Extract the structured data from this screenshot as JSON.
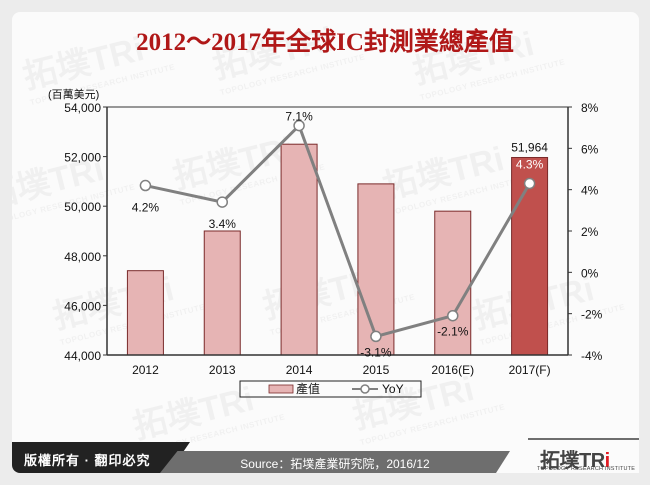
{
  "title": "2012～2017年全球IC封測業總產值",
  "unit_label": "(百萬美元)",
  "watermark": {
    "brand": "拓墣TRi",
    "subtitle": "TOPOLOGY RESEARCH INSTITUTE"
  },
  "footer": {
    "copyright": "版權所有 · 翻印必究",
    "source": "Source：拓墣產業研究院，2016/12",
    "logo_text": "拓墣TR",
    "logo_accent": "i",
    "logo_subtitle": "TOPOLOGY RESEARCH INSTITUTE"
  },
  "colors": {
    "title": "#b01818",
    "bar": "#e6b4b4",
    "bar_highlight": "#c0504d",
    "bar_border": "#7a2a2a",
    "line": "#808080"
  },
  "chart_data": {
    "type": "bar",
    "title": "2012～2017年全球IC封測業總產值",
    "categories": [
      "2012",
      "2013",
      "2014",
      "2015",
      "2016(E)",
      "2017(F)"
    ],
    "series": [
      {
        "name": "產值",
        "type": "bar",
        "axis": "left",
        "values": [
          47400,
          49000,
          52500,
          50900,
          49800,
          51964
        ]
      },
      {
        "name": "YoY",
        "type": "line",
        "axis": "right",
        "values": [
          4.2,
          3.4,
          7.1,
          -3.1,
          -2.1,
          4.3
        ],
        "labels": [
          "4.2%",
          "3.4%",
          "7.1%",
          "-3.1%",
          "-2.1%",
          "4.3%"
        ]
      }
    ],
    "bar_data_labels": {
      "5": "51,964"
    },
    "ylabel": "(百萬美元)",
    "ylim": [
      44000,
      54000
    ],
    "yticks": [
      "44,000",
      "46,000",
      "48,000",
      "50,000",
      "52,000",
      "54,000"
    ],
    "y2lim": [
      -4,
      8
    ],
    "y2ticks": [
      "-4%",
      "-2%",
      "0%",
      "2%",
      "4%",
      "6%",
      "8%"
    ],
    "grid": false,
    "legend": {
      "position": "bottom",
      "entries": [
        "產值",
        "YoY"
      ]
    }
  }
}
